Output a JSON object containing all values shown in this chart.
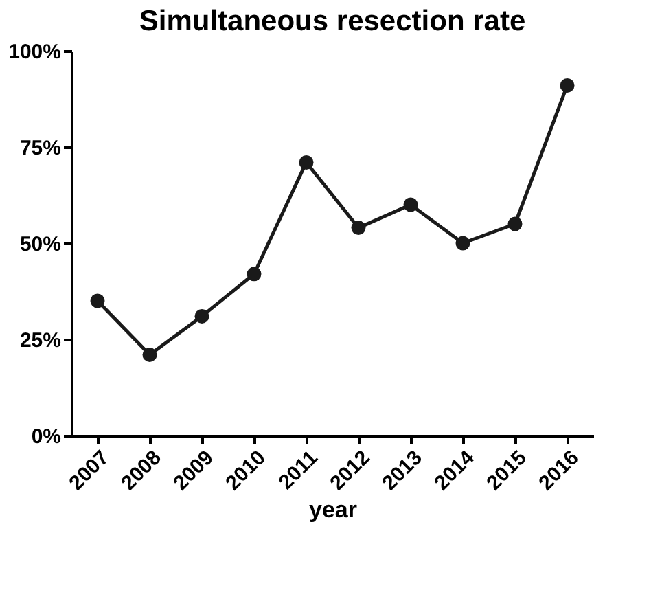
{
  "chart_data": {
    "type": "line",
    "title": "Simultaneous resection rate",
    "xlabel": "year",
    "categories": [
      "2007",
      "2008",
      "2009",
      "2010",
      "2011",
      "2012",
      "2013",
      "2014",
      "2015",
      "2016"
    ],
    "series": [
      {
        "color": "#1a1a1a",
        "values": [
          35,
          21,
          31,
          42,
          71,
          54,
          60,
          50,
          55,
          91
        ]
      }
    ],
    "ylim": [
      0,
      100
    ],
    "yticks": [
      {
        "value": 0,
        "label": "0%"
      },
      {
        "value": 25,
        "label": "25%"
      },
      {
        "value": 50,
        "label": "50%"
      },
      {
        "value": 75,
        "label": "75%"
      },
      {
        "value": 100,
        "label": "100%"
      }
    ],
    "grid": false,
    "marker": "circle",
    "line_style": "solid"
  }
}
